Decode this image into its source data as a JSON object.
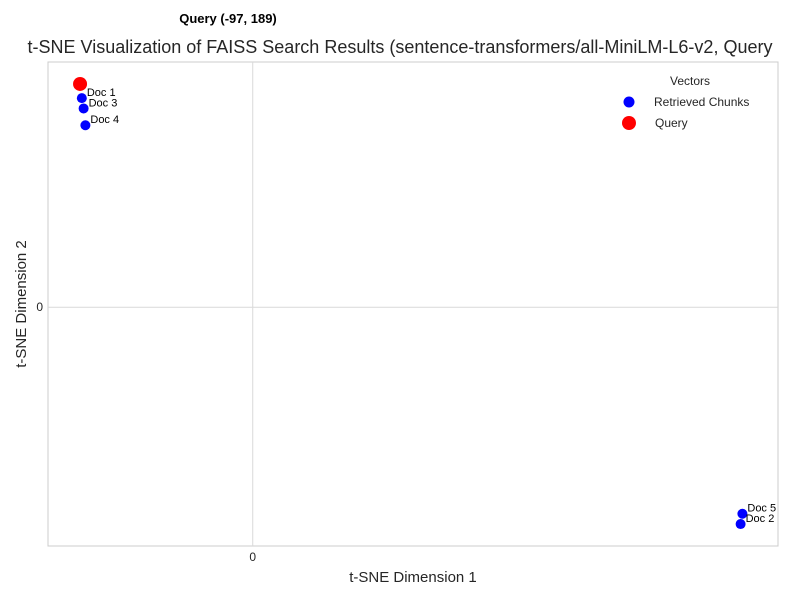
{
  "chart_data": {
    "type": "scatter",
    "title": "t-SNE Visualization of FAISS Search Results (sentence-transformers/all-MiniLM-L6-v2, Query",
    "annotation": "Query (-97, 189)",
    "xlabel": "t-SNE Dimension 1",
    "ylabel": "t-SNE Dimension 2",
    "xlim": [
      -115,
      295
    ],
    "ylim": [
      -185,
      190
    ],
    "xticks": [
      0
    ],
    "yticks": [
      0
    ],
    "grid": true,
    "legend": {
      "title": "Vectors",
      "position": "top-right",
      "entries": [
        "Retrieved Chunks",
        "Query"
      ]
    },
    "series": [
      {
        "name": "Retrieved Chunks",
        "color": "#0000ff",
        "points": [
          {
            "label": "Doc 1",
            "x": -96,
            "y": 162
          },
          {
            "label": "Doc 3",
            "x": -95,
            "y": 154
          },
          {
            "label": "Doc 4",
            "x": -94,
            "y": 141
          },
          {
            "label": "Doc 5",
            "x": 275,
            "y": -160
          },
          {
            "label": "Doc 2",
            "x": 274,
            "y": -168
          }
        ]
      },
      {
        "name": "Query",
        "color": "#ff0000",
        "points": [
          {
            "label": "",
            "x": -97,
            "y": 173
          }
        ]
      }
    ]
  }
}
